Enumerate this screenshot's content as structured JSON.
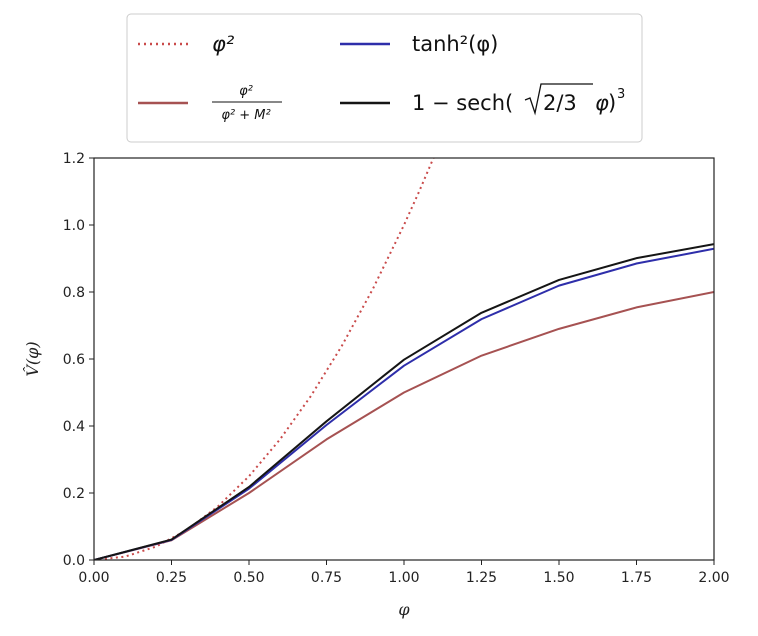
{
  "chart_data": {
    "type": "line",
    "xlabel": "φ",
    "ylabel": "V̂(φ)",
    "xlim": [
      0.0,
      2.0
    ],
    "ylim": [
      0.0,
      1.2
    ],
    "xticks": [
      "0.00",
      "0.25",
      "0.50",
      "0.75",
      "1.00",
      "1.25",
      "1.50",
      "1.75",
      "2.00"
    ],
    "yticks": [
      "0.0",
      "0.2",
      "0.4",
      "0.6",
      "0.8",
      "1.0",
      "1.2"
    ],
    "legend_position": "top (outside, above plot)",
    "grid": false,
    "series": [
      {
        "name": "φ²",
        "style": "dotted",
        "color": "#c94a4a",
        "x": [
          0.0,
          0.1,
          0.2,
          0.3,
          0.4,
          0.5,
          0.6,
          0.7,
          0.8,
          0.9,
          1.0,
          1.05,
          1.095
        ],
        "values": [
          0.0,
          0.01,
          0.04,
          0.09,
          0.16,
          0.25,
          0.36,
          0.49,
          0.64,
          0.81,
          1.0,
          1.1025,
          1.2
        ]
      },
      {
        "name": "φ² / (φ² + M²)",
        "name_numerator": "φ²",
        "name_denominator": "φ² + M²",
        "style": "solid",
        "color": "#a65252",
        "x": [
          0.0,
          0.25,
          0.5,
          0.75,
          1.0,
          1.25,
          1.5,
          1.75,
          2.0
        ],
        "values": [
          0.0,
          0.059,
          0.2,
          0.36,
          0.5,
          0.61,
          0.69,
          0.754,
          0.8
        ]
      },
      {
        "name": "tanh²(φ)",
        "style": "solid",
        "color": "#2e2eaa",
        "x": [
          0.0,
          0.25,
          0.5,
          0.75,
          1.0,
          1.25,
          1.5,
          1.75,
          2.0
        ],
        "values": [
          0.0,
          0.06,
          0.213,
          0.403,
          0.58,
          0.719,
          0.819,
          0.885,
          0.929
        ]
      },
      {
        "name": "1 − sech(√(2/3) φ)³",
        "name_lead": "1 − sech(",
        "name_radicand": "2/3",
        "name_var": "φ",
        "name_exponent": "3",
        "style": "solid",
        "color": "#151515",
        "x": [
          0.0,
          0.25,
          0.5,
          0.75,
          1.0,
          1.25,
          1.5,
          1.75,
          2.0
        ],
        "values": [
          0.0,
          0.061,
          0.218,
          0.414,
          0.598,
          0.738,
          0.836,
          0.901,
          0.943
        ]
      }
    ]
  }
}
